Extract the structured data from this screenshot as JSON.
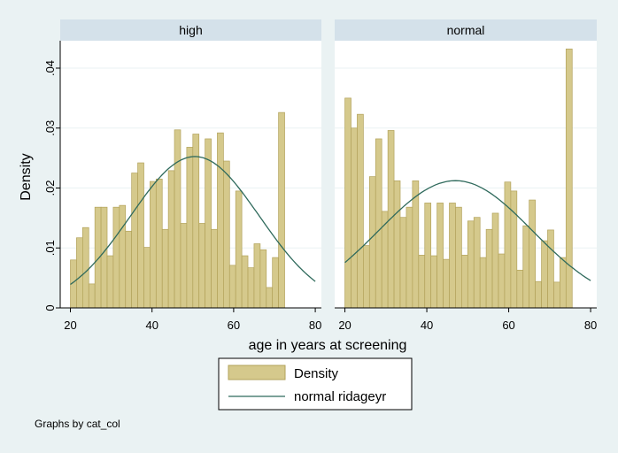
{
  "chart_data": {
    "type": "bar",
    "xlabel": "age in years at screening",
    "ylabel": "Density",
    "note": "Graphs by cat_col",
    "x_ticks": [
      20,
      40,
      60,
      80
    ],
    "y_ticks": [
      {
        "value": 0,
        "label": "0"
      },
      {
        "value": 0.01,
        "label": ".01"
      },
      {
        "value": 0.02,
        "label": ".02"
      },
      {
        "value": 0.03,
        "label": ".03"
      },
      {
        "value": 0.04,
        "label": ".04"
      }
    ],
    "xlim": [
      17.5,
      81.5
    ],
    "ylim": [
      0,
      0.045
    ],
    "bin_width": 1.5,
    "bin_start": 20,
    "legend": {
      "placement": "bottom",
      "entries": [
        {
          "label": "Density",
          "kind": "bar"
        },
        {
          "label": "normal ridageyr",
          "kind": "line"
        }
      ]
    },
    "colors": {
      "bar_fill": "#d5c98c",
      "bar_edge": "#b2a25a",
      "curve": "#2f6a5c",
      "panel_header": "#d4e1ea",
      "background": "#eaf2f3",
      "plot_bg": "#ffffff"
    },
    "panels": [
      {
        "label": "high",
        "densities": [
          0.008,
          0.0117,
          0.0134,
          0.004,
          0.0168,
          0.0168,
          0.0087,
          0.0168,
          0.0171,
          0.0128,
          0.0225,
          0.0242,
          0.0101,
          0.0211,
          0.0215,
          0.0131,
          0.0229,
          0.0297,
          0.0141,
          0.0268,
          0.029,
          0.0141,
          0.0282,
          0.0131,
          0.0292,
          0.0245,
          0.0071,
          0.0195,
          0.0087,
          0.0067,
          0.0107,
          0.0097,
          0.0034,
          0.0084,
          0.0326
        ],
        "normal_mean": 50.5,
        "normal_sd": 15.8
      },
      {
        "label": "normal",
        "densities": [
          0.035,
          0.03,
          0.0323,
          0.0104,
          0.0219,
          0.0282,
          0.0161,
          0.0296,
          0.0212,
          0.0151,
          0.0168,
          0.0212,
          0.0088,
          0.0175,
          0.0087,
          0.0175,
          0.0081,
          0.0175,
          0.0168,
          0.0088,
          0.0145,
          0.0151,
          0.0084,
          0.0131,
          0.0158,
          0.009,
          0.021,
          0.0195,
          0.0063,
          0.0137,
          0.018,
          0.0044,
          0.0112,
          0.013,
          0.0043,
          0.0084,
          0.0432
        ],
        "normal_mean": 47,
        "normal_sd": 18.8
      }
    ]
  }
}
